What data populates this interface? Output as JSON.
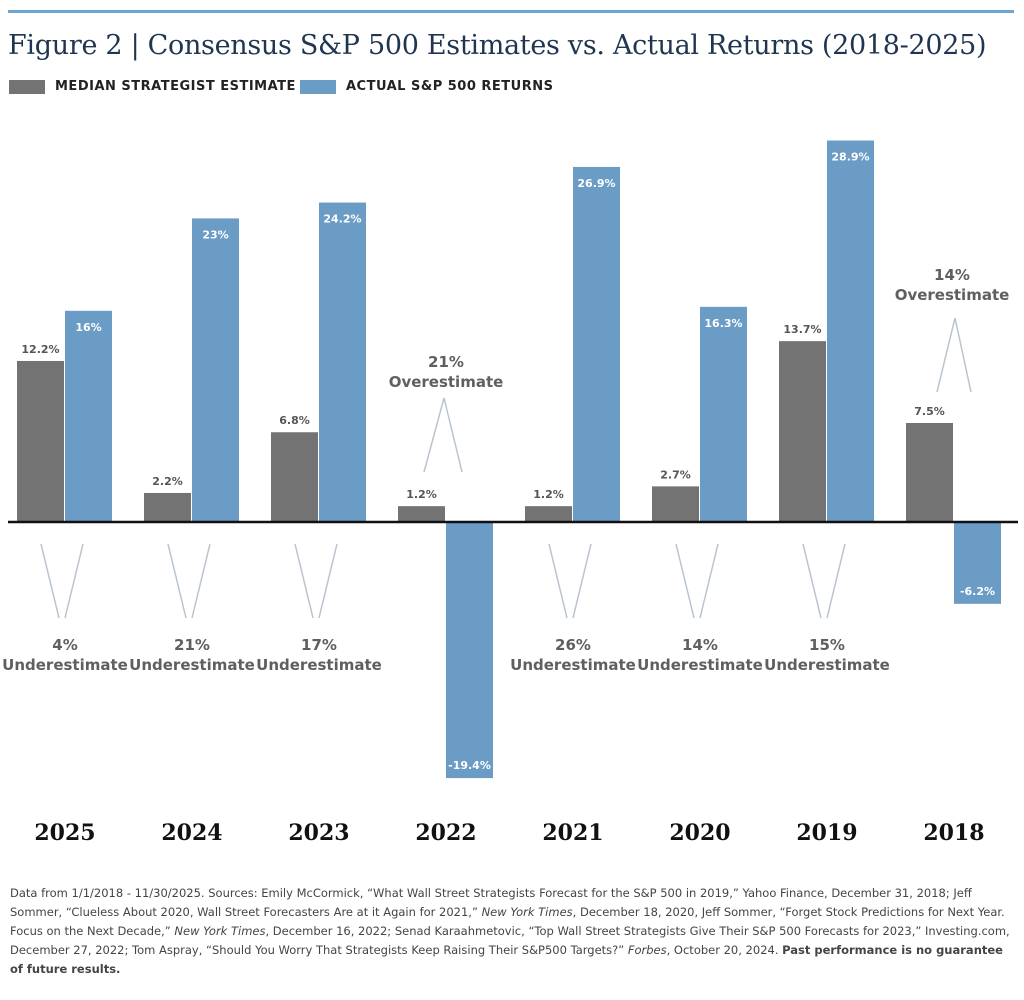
{
  "title": "Figure 2 | Consensus S&P 500 Estimates vs. Actual Returns (2018-2025)",
  "colors": {
    "estimate": "#737373",
    "actual": "#6a9cc6",
    "axis": "#111111",
    "annotation": "#5f5f5f",
    "gap_line": "#b9c4cf",
    "top_rule": "#6fa5cf"
  },
  "chart_data": {
    "type": "bar",
    "title": "Consensus S&P 500 Estimates vs. Actual Returns (2018-2025)",
    "categories": [
      "2025",
      "2024",
      "2023",
      "2022",
      "2021",
      "2020",
      "2019",
      "2018"
    ],
    "series": [
      {
        "name": "MEDIAN STRATEGIST ESTIMATE",
        "values": [
          12.2,
          2.2,
          6.8,
          1.2,
          1.2,
          2.7,
          13.7,
          7.5
        ],
        "labels": [
          "12.2%",
          "2.2%",
          "6.8%",
          "1.2%",
          "1.2%",
          "2.7%",
          "13.7%",
          "7.5%"
        ]
      },
      {
        "name": "ACTUAL S&P 500 RETURNS",
        "values": [
          16,
          23,
          24.2,
          -19.4,
          26.9,
          16.3,
          28.9,
          -6.2
        ],
        "labels": [
          "16%",
          "23%",
          "24.2%",
          "-19.4%",
          "26.9%",
          "16.3%",
          "28.9%",
          "-6.2%"
        ]
      }
    ],
    "annotations": [
      {
        "category": "2025",
        "value": "4%",
        "text": "Underestimate",
        "position": "below"
      },
      {
        "category": "2024",
        "value": "21%",
        "text": "Underestimate",
        "position": "below"
      },
      {
        "category": "2023",
        "value": "17%",
        "text": "Underestimate",
        "position": "below"
      },
      {
        "category": "2022",
        "value": "21%",
        "text": "Overestimate",
        "position": "above"
      },
      {
        "category": "2021",
        "value": "26%",
        "text": "Underestimate",
        "position": "below"
      },
      {
        "category": "2020",
        "value": "14%",
        "text": "Underestimate",
        "position": "below"
      },
      {
        "category": "2019",
        "value": "15%",
        "text": "Underestimate",
        "position": "below"
      },
      {
        "category": "2018",
        "value": "14%",
        "text": "Overestimate",
        "position": "above"
      }
    ],
    "ylim": [
      -20,
      30
    ],
    "grid": false,
    "legend": "top-left",
    "xlabel": "",
    "ylabel": ""
  },
  "footnote": {
    "p1": "Data from 1/1/2018 - 11/30/2025. Sources: Emily McCormick, “What Wall Street Strategists Forecast for the S&P 500 in 2019,” Yahoo Finance, December 31, 2018; Jeff Sommer, “Clueless About 2020, Wall Street Forecasters Are at it Again for 2021,” ",
    "i1": "New York Times",
    "p2": ", December 18, 2020, Jeff Sommer, “Forget Stock Predictions for Next Year. Focus on the Next Decade,” ",
    "i2": "New York Times",
    "p3": ", December 16, 2022; Senad Karaahmetovic, “Top Wall Street Strategists Give Their S&P 500 Forecasts for 2023,” Investing.com, December 27, 2022; Tom Aspray, “Should You Worry That Strategists Keep Raising Their S&P500 Targets?” ",
    "i3": "Forbes",
    "p4": ", October 20, 2024. ",
    "b1": "Past performance is no guarantee of future results."
  }
}
